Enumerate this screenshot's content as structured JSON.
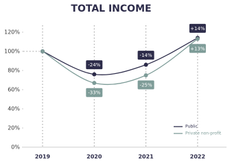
{
  "chart_data": {
    "type": "line",
    "title": "TOTAL INCOME",
    "categories": [
      "2019",
      "2020",
      "2021",
      "2022"
    ],
    "series": [
      {
        "name": "Public",
        "color": "#2d2c4a",
        "values": [
          100,
          76,
          86,
          114
        ],
        "changes": [
          null,
          {
            "value": -24,
            "label": "-24%"
          },
          {
            "value": -14,
            "label": "-14%"
          },
          {
            "value": 14,
            "label": "+14%"
          }
        ]
      },
      {
        "name": "Private non-profit",
        "color": "#7e9c98",
        "values": [
          100,
          67,
          75,
          113
        ],
        "changes": [
          null,
          {
            "value": -33,
            "label": "-33%"
          },
          {
            "value": -25,
            "label": "-25%"
          },
          {
            "value": 13,
            "label": "+13%"
          }
        ]
      }
    ],
    "ylim": [
      0,
      120
    ],
    "yticks": [
      {
        "value": 0,
        "label": "0%"
      },
      {
        "value": 20,
        "label": "20%"
      },
      {
        "value": 40,
        "label": "40%"
      },
      {
        "value": 60,
        "label": "60%"
      },
      {
        "value": 80,
        "label": "80%"
      },
      {
        "value": 100,
        "label": "100%"
      },
      {
        "value": 120,
        "label": "120%"
      }
    ],
    "legend": "lower right"
  }
}
